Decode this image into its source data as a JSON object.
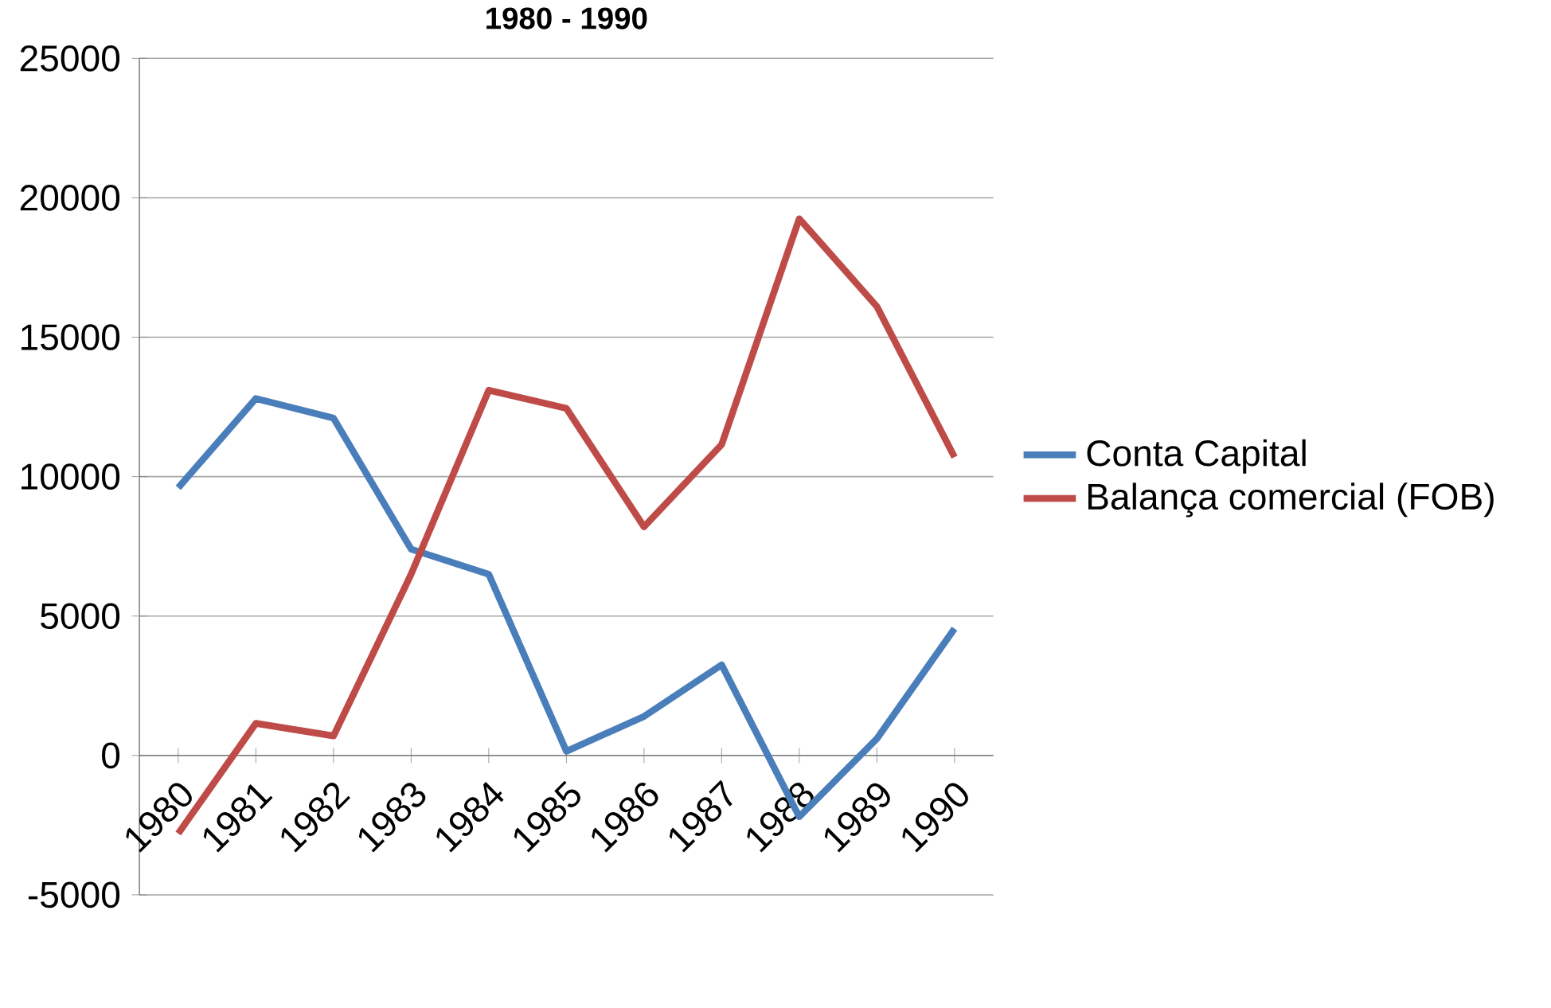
{
  "chart_data": {
    "type": "line",
    "title": "1980 - 1990",
    "categories": [
      "1980",
      "1981",
      "1982",
      "1983",
      "1984",
      "1985",
      "1986",
      "1987",
      "1988",
      "1989",
      "1990"
    ],
    "series": [
      {
        "name": "Conta Capital",
        "color": "#4a7ebb",
        "values": [
          9600,
          12800,
          12100,
          7400,
          6500,
          150,
          1400,
          3250,
          -2200,
          600,
          4550
        ]
      },
      {
        "name": "Balança comercial (FOB)",
        "color": "#be4b48",
        "values": [
          -2800,
          1150,
          700,
          6500,
          13100,
          12450,
          8200,
          11150,
          19250,
          16100,
          10700
        ]
      }
    ],
    "ylim": [
      -5000,
      25000
    ],
    "yticks": [
      -5000,
      0,
      5000,
      10000,
      15000,
      20000,
      25000
    ],
    "grid": "y",
    "legend": "right",
    "marker": "none",
    "line_style": "solid"
  }
}
